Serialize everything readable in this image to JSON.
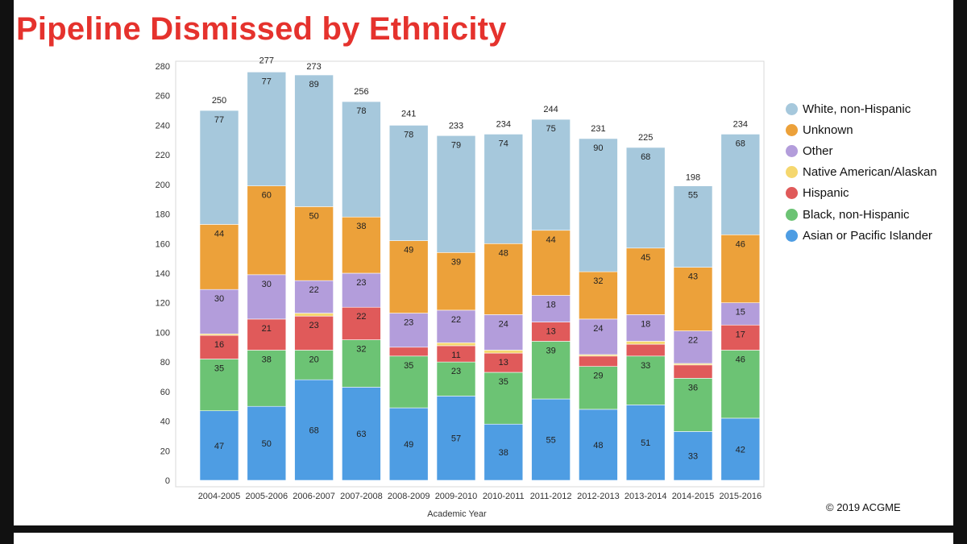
{
  "title": "Pipeline Dismissed by Ethnicity",
  "copyright": "© 2019  ACGME",
  "chart_data": {
    "type": "bar",
    "stacked": true,
    "xlabel": "Academic Year",
    "ylabel": "",
    "ylim": [
      0,
      280
    ],
    "yticks": [
      0,
      20,
      40,
      60,
      80,
      100,
      120,
      140,
      160,
      180,
      200,
      220,
      240,
      260,
      280
    ],
    "legend_position": "right",
    "categories": [
      "2004-2005",
      "2005-2006",
      "2006-2007",
      "2007-2008",
      "2008-2009",
      "2009-2010",
      "2010-2011",
      "2011-2012",
      "2012-2013",
      "2013-2014",
      "2014-2015",
      "2015-2016"
    ],
    "totals": [
      250,
      277,
      273,
      256,
      241,
      233,
      234,
      244,
      231,
      225,
      198,
      234
    ],
    "series": [
      {
        "name": "Asian or Pacific Islander",
        "color": "#4e9de3",
        "values": [
          47,
          50,
          68,
          63,
          49,
          57,
          38,
          55,
          48,
          51,
          33,
          42
        ],
        "labels": [
          "47",
          "50",
          "68",
          "63",
          "49",
          "57",
          "38",
          "55",
          "48",
          "51",
          "33",
          "42"
        ]
      },
      {
        "name": "Black, non-Hispanic",
        "color": "#6cc374",
        "values": [
          35,
          38,
          20,
          32,
          35,
          23,
          35,
          39,
          29,
          33,
          36,
          46
        ],
        "labels": [
          "35",
          "38",
          "20",
          "32",
          "35",
          "23",
          "35",
          "39",
          "29",
          "33",
          "36",
          "46"
        ]
      },
      {
        "name": "Hispanic",
        "color": "#e05a5a",
        "values": [
          16,
          21,
          23,
          22,
          6,
          11,
          13,
          13,
          7,
          8,
          9,
          17
        ],
        "labels": [
          "16",
          "21",
          "23",
          "22",
          "",
          "11",
          "13",
          "13",
          "",
          "",
          "",
          "17"
        ]
      },
      {
        "name": "Native American/Alaskan",
        "color": "#f5d76e",
        "values": [
          1,
          0,
          2,
          0,
          0,
          2,
          2,
          0,
          1,
          2,
          1,
          0
        ],
        "labels": [
          "",
          "",
          "",
          "",
          "",
          "",
          "",
          "",
          "",
          "",
          "",
          ""
        ]
      },
      {
        "name": "Other",
        "color": "#b39ddb",
        "values": [
          30,
          30,
          22,
          23,
          23,
          22,
          24,
          18,
          24,
          18,
          22,
          15
        ],
        "labels": [
          "30",
          "30",
          "22",
          "23",
          "23",
          "22",
          "24",
          "18",
          "24",
          "18",
          "22",
          "15"
        ]
      },
      {
        "name": "Unknown",
        "color": "#eca13a",
        "values": [
          44,
          60,
          50,
          38,
          49,
          39,
          48,
          44,
          32,
          45,
          43,
          46
        ],
        "labels": [
          "44",
          "60",
          "50",
          "38",
          "49",
          "39",
          "48",
          "44",
          "32",
          "45",
          "43",
          "46"
        ]
      },
      {
        "name": "White, non-Hispanic",
        "color": "#a6c8dc",
        "values": [
          77,
          77,
          89,
          78,
          78,
          79,
          74,
          75,
          90,
          68,
          55,
          68
        ],
        "labels": [
          "77",
          "77",
          "89",
          "78",
          "78",
          "79",
          "74",
          "75",
          "90",
          "68",
          "55",
          "68"
        ]
      }
    ]
  }
}
